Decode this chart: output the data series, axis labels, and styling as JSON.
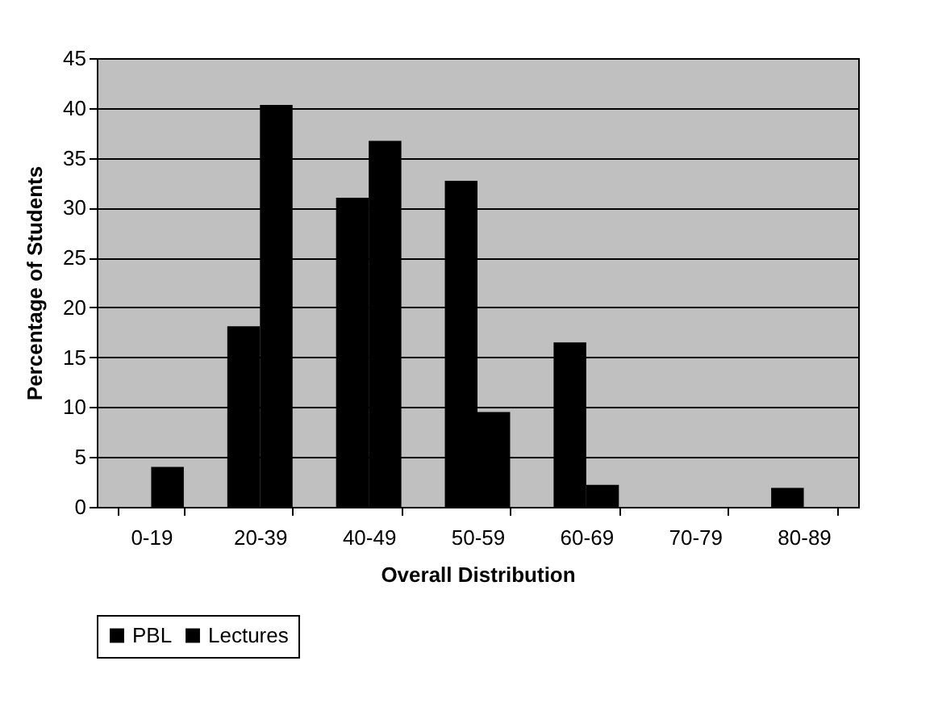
{
  "chart_data": {
    "type": "bar",
    "xlabel": "Overall Distribution",
    "ylabel": "Percentage of Students",
    "categories": [
      "0-19",
      "20-39",
      "40-49",
      "50-59",
      "60-69",
      "70-79",
      "80-89"
    ],
    "series": [
      {
        "name": "PBL",
        "color": "#000000",
        "values": [
          0,
          18.1,
          31.0,
          32.7,
          16.5,
          0,
          1.9
        ]
      },
      {
        "name": "Lectures",
        "color": "#000000",
        "values": [
          4.0,
          40.3,
          36.7,
          9.5,
          2.2,
          0,
          0
        ]
      }
    ],
    "ylim": [
      0,
      45
    ],
    "yticks": [
      0,
      5,
      10,
      15,
      20,
      25,
      30,
      35,
      40,
      45
    ],
    "grid": "y",
    "legend": "bottom left"
  }
}
